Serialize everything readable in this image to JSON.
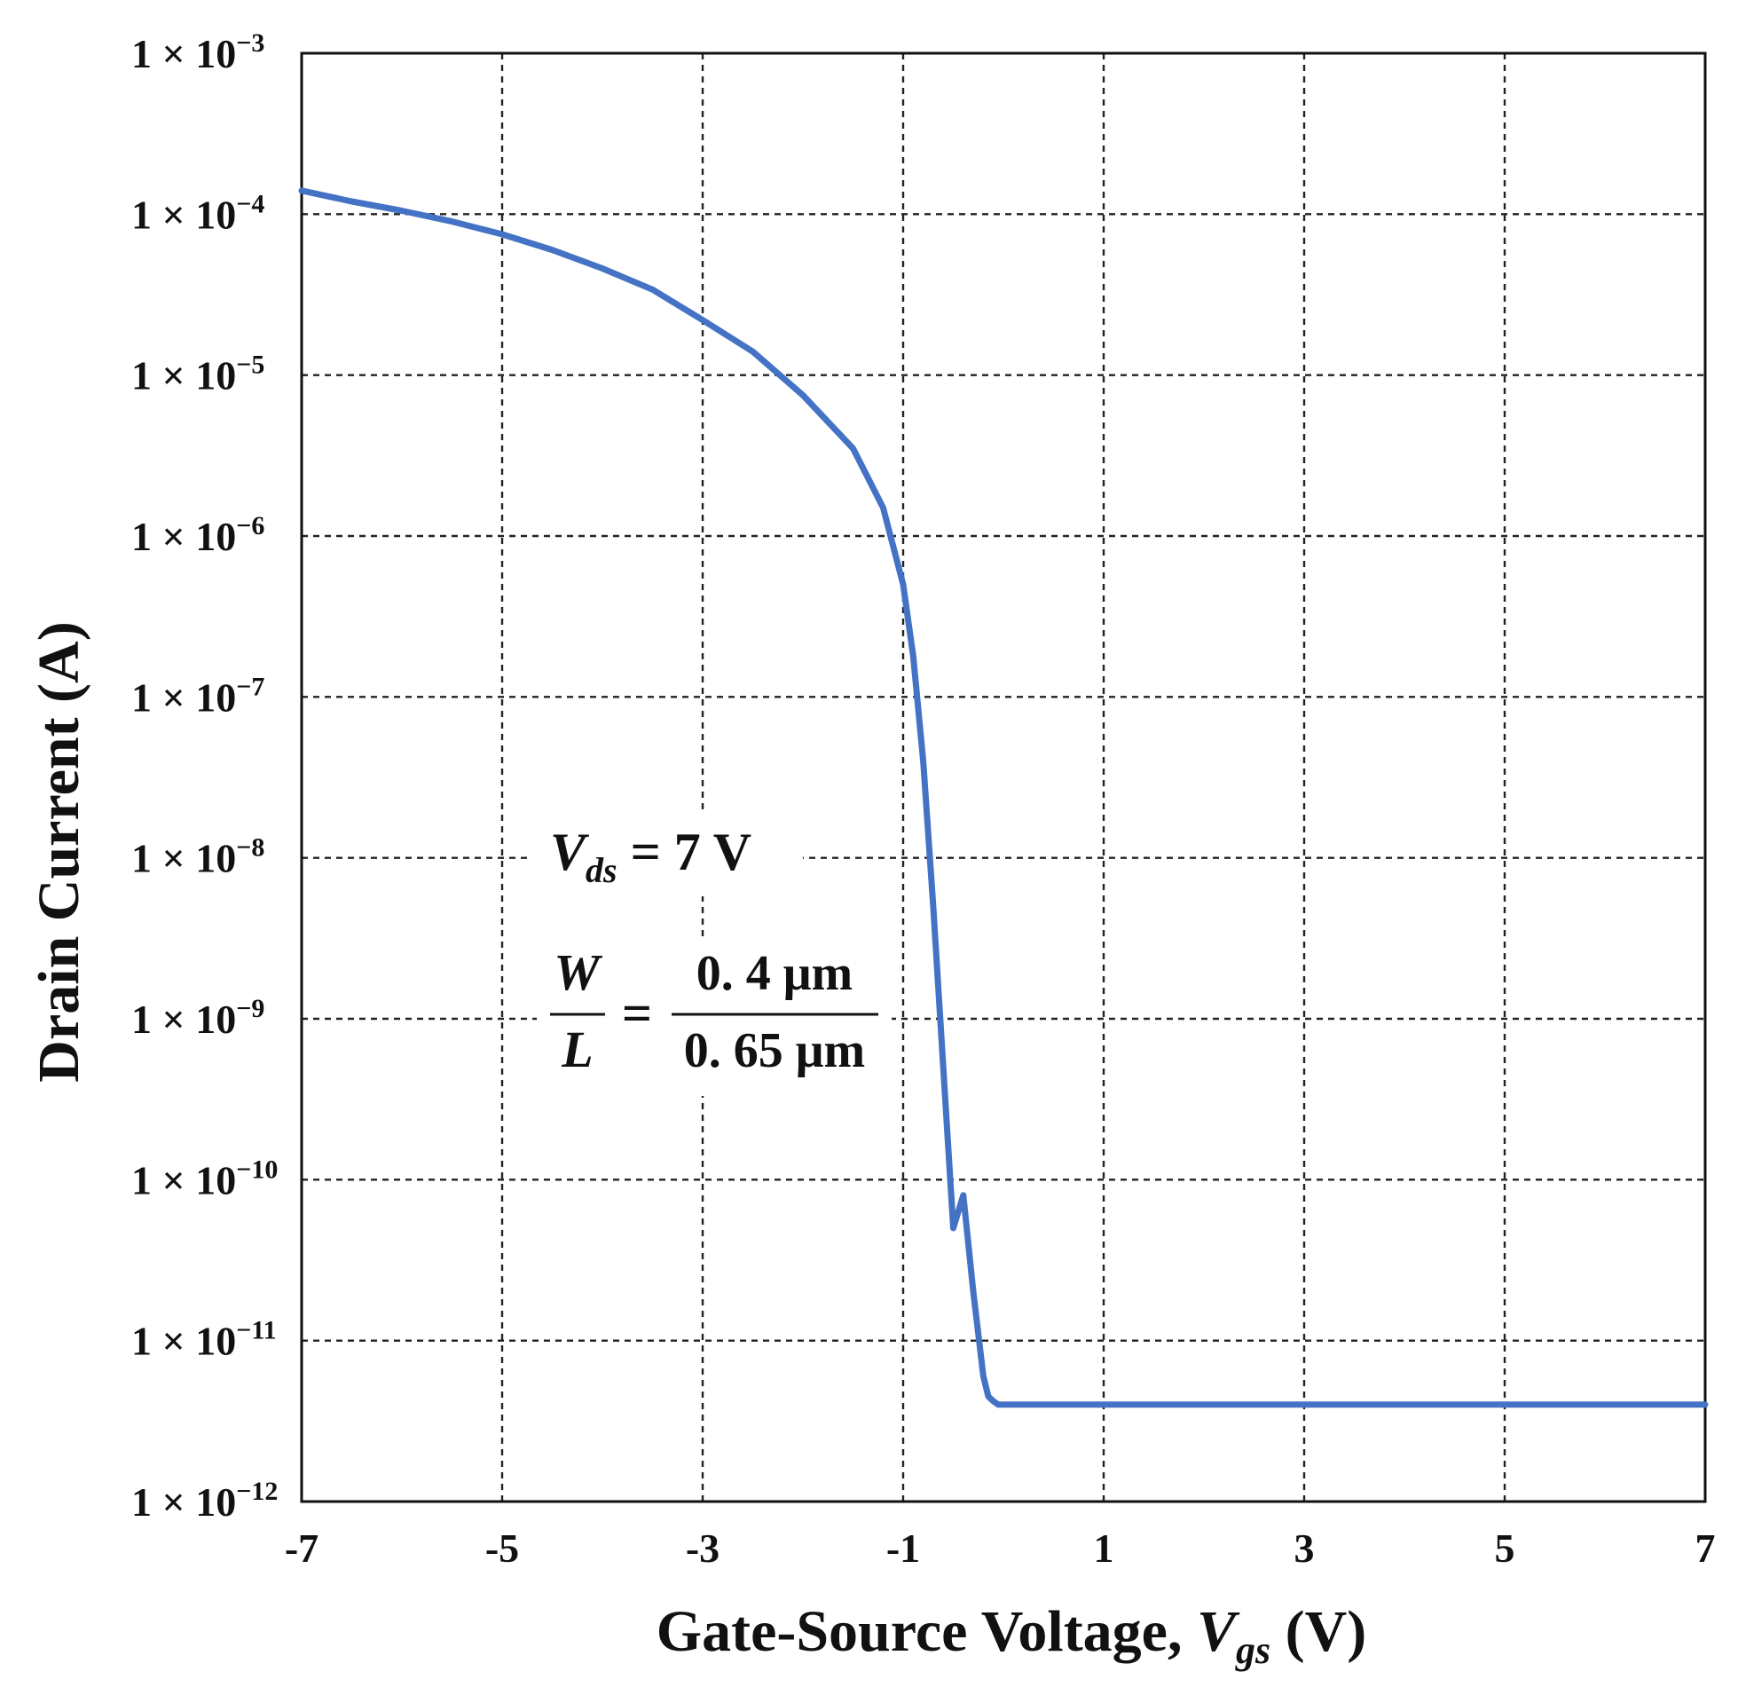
{
  "chart_data": {
    "type": "line",
    "xlabel": {
      "prefix": "Gate-Source Voltage, ",
      "var": "V",
      "sub": "gs",
      "suffix": " (V)"
    },
    "ylabel": "Drain Current (A)",
    "xlim": [
      -7,
      7
    ],
    "ylim": [
      1e-12,
      0.001
    ],
    "yscale": "log",
    "grid": true,
    "x_ticks": [
      -7,
      -5,
      -3,
      -1,
      1,
      3,
      5,
      7
    ],
    "x_tick_labels": [
      "-7",
      "-5",
      "-3",
      "-1",
      "1",
      "3",
      "5",
      "7"
    ],
    "y_tick_labels": [
      {
        "mantissa": "1 × 10",
        "exponent": "−12"
      },
      {
        "mantissa": "1 × 10",
        "exponent": "−11"
      },
      {
        "mantissa": "1 × 10",
        "exponent": "−10"
      },
      {
        "mantissa": "1 × 10",
        "exponent": "−9"
      },
      {
        "mantissa": "1 × 10",
        "exponent": "−8"
      },
      {
        "mantissa": "1 × 10",
        "exponent": "−7"
      },
      {
        "mantissa": "1 × 10",
        "exponent": "−6"
      },
      {
        "mantissa": "1 × 10",
        "exponent": "−5"
      },
      {
        "mantissa": "1 × 10",
        "exponent": "−4"
      },
      {
        "mantissa": "1 × 10",
        "exponent": "−3"
      }
    ],
    "y_tick_values": [
      1e-12,
      1e-11,
      1e-10,
      1e-09,
      1e-08,
      1e-07,
      1e-06,
      1e-05,
      0.0001,
      0.001
    ],
    "annotations": {
      "vds": {
        "var": "V",
        "sub": "ds",
        "rest": " = 7 V"
      },
      "ratio": {
        "num_left": "W",
        "den_left": "L",
        "equals": "=",
        "num_right": "0. 4 μm",
        "den_right": "0. 65 μm"
      }
    },
    "series": [
      {
        "color": "#4472C4",
        "x": [
          -7,
          -6.5,
          -6,
          -5.5,
          -5,
          -4.5,
          -4,
          -3.5,
          -3,
          -2.5,
          -2,
          -1.5,
          -1.2,
          -1.0,
          -0.9,
          -0.8,
          -0.7,
          -0.6,
          -0.5,
          -0.4,
          -0.3,
          -0.2,
          -0.15,
          -0.1,
          -0.05,
          0.0,
          0.2,
          0.5,
          1,
          2,
          3,
          4,
          5,
          6,
          7
        ],
        "y": [
          0.00014,
          0.00012,
          0.000105,
          9e-05,
          7.5e-05,
          6e-05,
          4.6e-05,
          3.4e-05,
          2.2e-05,
          1.4e-05,
          7.5e-06,
          3.5e-06,
          1.5e-06,
          5e-07,
          1.8e-07,
          4e-08,
          5e-09,
          5e-10,
          5e-11,
          8e-11,
          2e-11,
          6e-12,
          4.5e-12,
          4.2e-12,
          4e-12,
          4e-12,
          4e-12,
          4e-12,
          4e-12,
          4e-12,
          4e-12,
          4e-12,
          4e-12,
          4e-12,
          4e-12
        ]
      }
    ]
  }
}
